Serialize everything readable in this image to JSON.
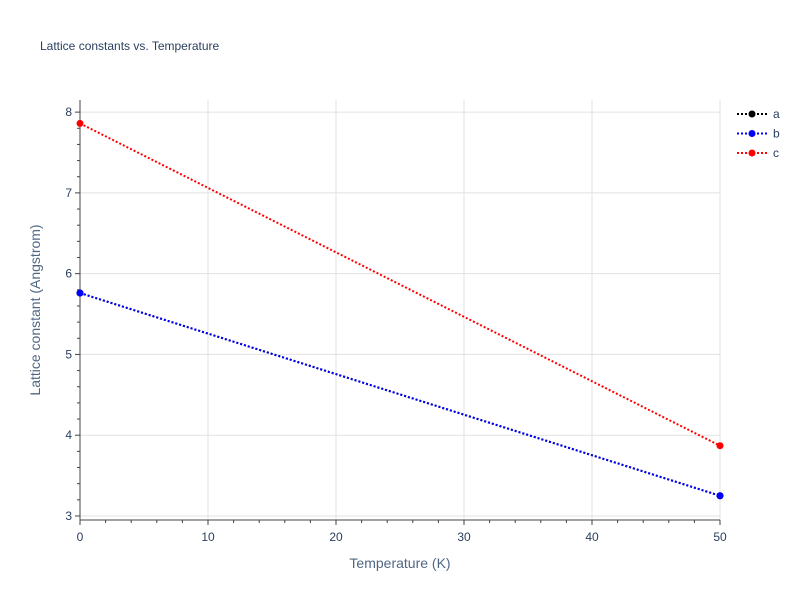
{
  "chart_data": {
    "type": "line",
    "title": "Lattice constants vs. Temperature",
    "xlabel": "Temperature (K)",
    "ylabel": "Lattice constant (Angstrom)",
    "xlim": [
      0,
      50
    ],
    "ylim": [
      2.95,
      8.15
    ],
    "xticks": [
      0,
      10,
      20,
      30,
      40,
      50
    ],
    "yticks": [
      3,
      4,
      5,
      6,
      7,
      8
    ],
    "grid": true,
    "legend_position": "top-right",
    "x": [
      0,
      50
    ],
    "series": [
      {
        "name": "a",
        "color": "#000000",
        "values": [
          5.76,
          3.25
        ]
      },
      {
        "name": "b",
        "color": "#0000ff",
        "values": [
          5.76,
          3.25
        ]
      },
      {
        "name": "c",
        "color": "#ff0000",
        "values": [
          7.86,
          3.87
        ]
      }
    ]
  }
}
